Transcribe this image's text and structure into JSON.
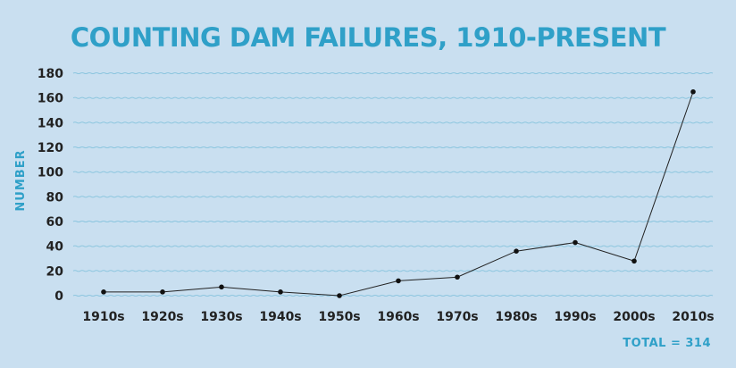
{
  "chart_data": {
    "type": "line",
    "title": "COUNTING DAM FAILURES, 1910-PRESENT",
    "ylabel": "NUMBER",
    "xlabel": "",
    "categories": [
      "1910s",
      "1920s",
      "1930s",
      "1940s",
      "1950s",
      "1960s",
      "1970s",
      "1980s",
      "1990s",
      "2000s",
      "2010s"
    ],
    "values": [
      3,
      3,
      7,
      3,
      0,
      12,
      15,
      36,
      43,
      28,
      165
    ],
    "ylim": [
      0,
      180
    ],
    "yticks": [
      "0",
      "20",
      "40",
      "60",
      "80",
      "100",
      "120",
      "140",
      "160",
      "180"
    ],
    "grid": true,
    "total_label": "TOTAL = 314",
    "colors": {
      "background": "#c9dff0",
      "accent": "#2fa0c8",
      "grid": "#8dc6df",
      "line": "#222222"
    }
  }
}
